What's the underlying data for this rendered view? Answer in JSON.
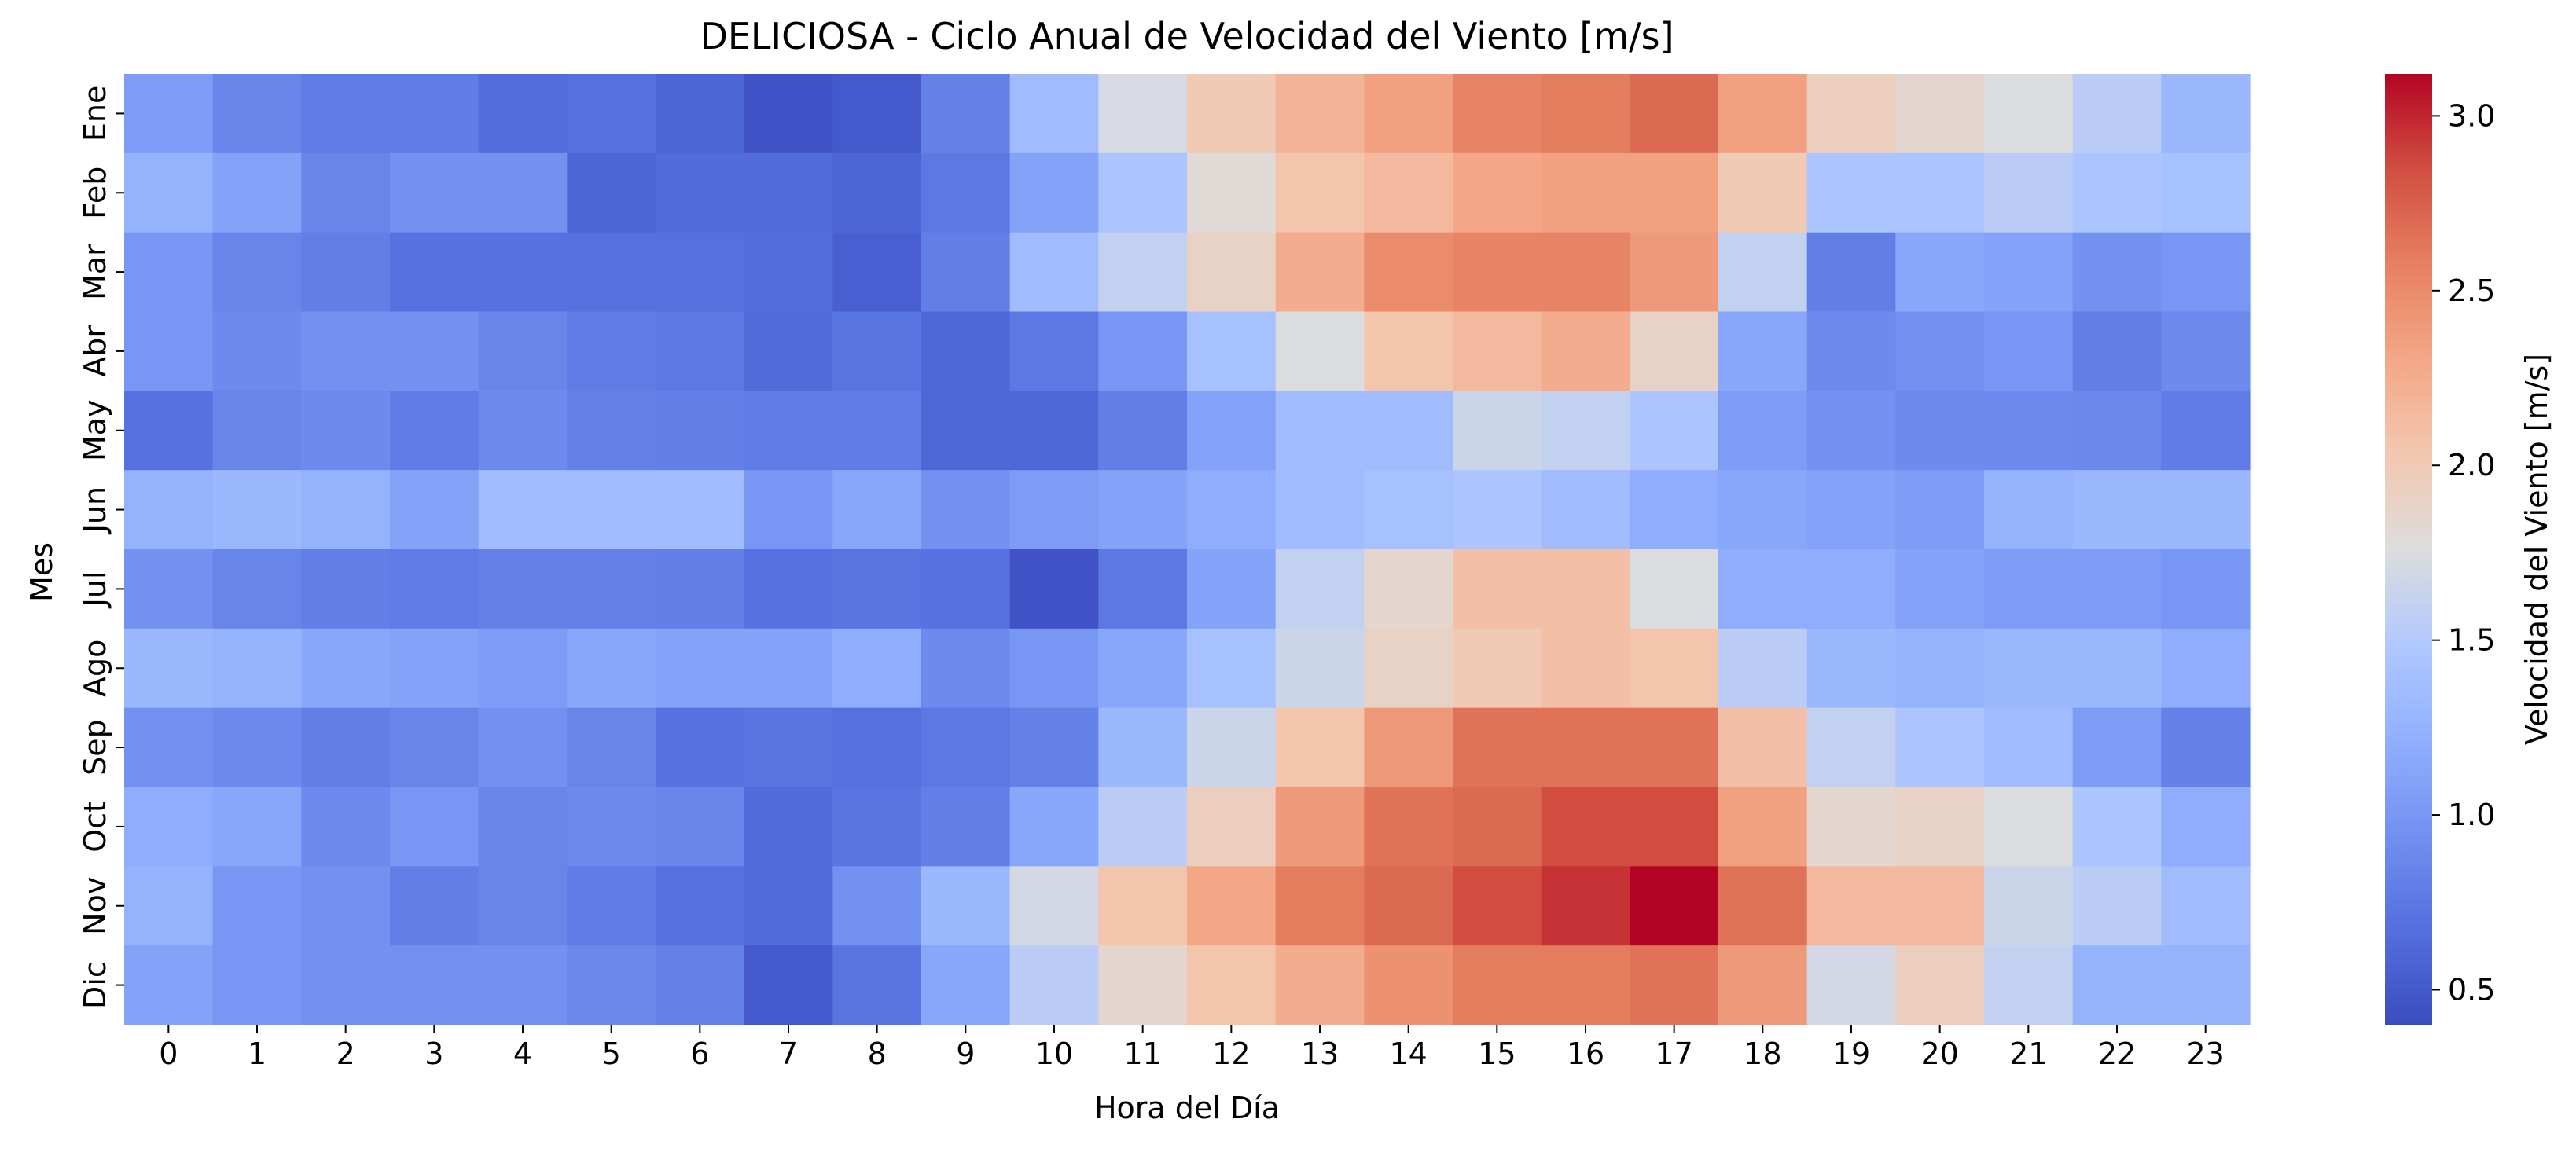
{
  "chart_data": {
    "type": "heatmap",
    "title": "DELICIOSA - Ciclo Anual de Velocidad del Viento [m/s]",
    "xlabel": "Hora del Día",
    "ylabel": "Mes",
    "colorbar_label": "Velocidad del Viento [m/s]",
    "colormap": "coolwarm",
    "vmin": 0.4,
    "vmax": 3.12,
    "colorbar_ticks": [
      0.5,
      1.0,
      1.5,
      2.0,
      2.5,
      3.0
    ],
    "x": [
      0,
      1,
      2,
      3,
      4,
      5,
      6,
      7,
      8,
      9,
      10,
      11,
      12,
      13,
      14,
      15,
      16,
      17,
      18,
      19,
      20,
      21,
      22,
      23
    ],
    "y": [
      "Ene",
      "Feb",
      "Mar",
      "Abr",
      "May",
      "Jun",
      "Jul",
      "Ago",
      "Sep",
      "Oct",
      "Nov",
      "Dic"
    ],
    "values": [
      [
        1.05,
        0.85,
        0.78,
        0.78,
        0.66,
        0.68,
        0.6,
        0.45,
        0.5,
        0.82,
        1.35,
        1.72,
        2.0,
        2.2,
        2.35,
        2.55,
        2.6,
        2.7,
        2.35,
        1.95,
        1.85,
        1.75,
        1.55,
        1.3
      ],
      [
        1.25,
        1.1,
        0.85,
        0.95,
        0.95,
        0.6,
        0.65,
        0.65,
        0.6,
        0.75,
        1.1,
        1.45,
        1.8,
        2.05,
        2.15,
        2.3,
        2.35,
        2.35,
        2.0,
        1.45,
        1.45,
        1.55,
        1.45,
        1.4
      ],
      [
        1.0,
        0.85,
        0.8,
        0.7,
        0.7,
        0.68,
        0.68,
        0.66,
        0.55,
        0.8,
        1.35,
        1.6,
        1.9,
        2.25,
        2.5,
        2.55,
        2.55,
        2.4,
        1.6,
        0.8,
        1.15,
        1.1,
        0.95,
        1.0
      ],
      [
        1.0,
        0.9,
        0.95,
        0.95,
        0.85,
        0.78,
        0.75,
        0.65,
        0.72,
        0.62,
        0.75,
        1.0,
        1.4,
        1.75,
        2.05,
        2.15,
        2.25,
        1.9,
        1.15,
        0.9,
        0.95,
        1.0,
        0.8,
        0.9
      ],
      [
        0.7,
        0.85,
        0.9,
        0.78,
        0.9,
        0.82,
        0.8,
        0.78,
        0.78,
        0.62,
        0.62,
        0.8,
        1.1,
        1.35,
        1.35,
        1.65,
        1.6,
        1.45,
        1.05,
        0.95,
        0.9,
        0.9,
        0.88,
        0.78
      ],
      [
        1.25,
        1.3,
        1.25,
        1.1,
        1.35,
        1.35,
        1.35,
        1.0,
        1.15,
        0.95,
        1.05,
        1.1,
        1.2,
        1.35,
        1.4,
        1.45,
        1.35,
        1.2,
        1.15,
        1.1,
        1.05,
        1.25,
        1.3,
        1.3
      ],
      [
        0.95,
        0.85,
        0.8,
        0.78,
        0.82,
        0.82,
        0.8,
        0.7,
        0.72,
        0.7,
        0.45,
        0.75,
        1.1,
        1.6,
        1.85,
        2.1,
        2.1,
        1.75,
        1.2,
        1.2,
        1.1,
        1.05,
        1.05,
        1.0
      ],
      [
        1.3,
        1.25,
        1.15,
        1.1,
        1.05,
        1.15,
        1.1,
        1.1,
        1.2,
        0.9,
        1.0,
        1.15,
        1.4,
        1.65,
        1.9,
        2.0,
        2.1,
        2.05,
        1.55,
        1.3,
        1.25,
        1.3,
        1.3,
        1.2
      ],
      [
        0.95,
        0.9,
        0.8,
        0.85,
        0.95,
        0.85,
        0.7,
        0.72,
        0.68,
        0.75,
        0.82,
        1.3,
        1.65,
        2.05,
        2.4,
        2.65,
        2.65,
        2.65,
        2.1,
        1.6,
        1.45,
        1.35,
        1.05,
        0.82
      ],
      [
        1.2,
        1.15,
        0.9,
        1.0,
        0.85,
        0.9,
        0.85,
        0.65,
        0.72,
        0.8,
        1.15,
        1.55,
        1.95,
        2.4,
        2.65,
        2.7,
        2.85,
        2.85,
        2.35,
        1.85,
        1.9,
        1.75,
        1.45,
        1.2
      ],
      [
        1.25,
        1.0,
        0.95,
        0.8,
        0.85,
        0.78,
        0.7,
        0.65,
        0.95,
        1.3,
        1.7,
        2.05,
        2.3,
        2.6,
        2.7,
        2.85,
        2.95,
        3.12,
        2.65,
        2.15,
        2.15,
        1.65,
        1.55,
        1.35
      ],
      [
        1.1,
        1.0,
        0.95,
        0.95,
        0.95,
        0.88,
        0.82,
        0.5,
        0.72,
        1.15,
        1.55,
        1.85,
        2.05,
        2.25,
        2.45,
        2.6,
        2.6,
        2.65,
        2.4,
        1.7,
        1.95,
        1.6,
        1.25,
        1.25
      ]
    ]
  }
}
